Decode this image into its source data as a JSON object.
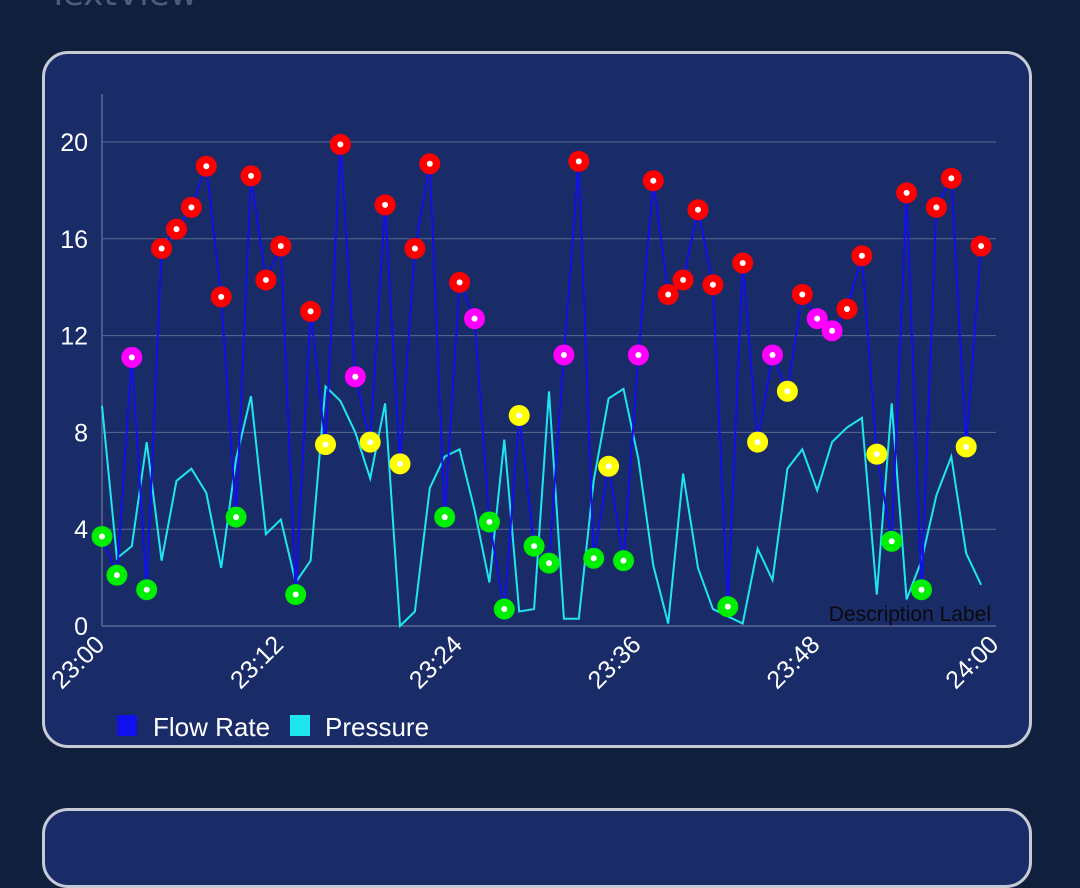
{
  "top_label": "TextView",
  "chart_data": {
    "type": "line",
    "ylim": [
      0,
      22
    ],
    "yticks": [
      0,
      4,
      8,
      12,
      16,
      20
    ],
    "xticks": [
      "23:00",
      "23:12",
      "23:24",
      "23:36",
      "23:48",
      "24:00"
    ],
    "description": "Description Label",
    "legend": [
      "Flow Rate",
      "Pressure"
    ],
    "legend_position": "bottom-left",
    "grid": true,
    "colors": {
      "flow": "#1010ee",
      "pressure": "#1ee6f0",
      "grid": "#5a6890",
      "marker_red": "#ff0000",
      "marker_magenta": "#ff00ff",
      "marker_yellow": "#ffff00",
      "marker_green": "#00ee00"
    },
    "series": [
      {
        "name": "Flow Rate",
        "values": [
          3.7,
          2.1,
          11.1,
          1.5,
          15.6,
          16.4,
          17.3,
          19.0,
          13.6,
          4.5,
          18.6,
          14.3,
          15.7,
          1.3,
          13.0,
          7.5,
          19.9,
          10.3,
          7.6,
          17.4,
          6.7,
          15.6,
          19.1,
          4.5,
          14.2,
          12.7,
          4.3,
          0.7,
          8.7,
          3.3,
          2.6,
          11.2,
          19.2,
          2.8,
          6.6,
          2.7,
          11.2,
          18.4,
          13.7,
          14.3,
          17.2,
          14.1,
          0.8,
          15.0,
          7.6,
          11.2,
          9.7,
          13.7,
          12.7,
          12.2,
          13.1,
          15.3,
          7.1,
          3.5,
          17.9,
          1.5,
          17.3,
          18.5,
          7.4,
          15.7
        ]
      },
      {
        "name": "Pressure",
        "values": [
          9.1,
          2.8,
          3.3,
          7.6,
          2.7,
          6.0,
          6.5,
          5.5,
          2.4,
          6.9,
          9.5,
          3.8,
          4.4,
          1.8,
          2.7,
          9.9,
          9.3,
          8.0,
          6.1,
          9.2,
          0.0,
          0.6,
          5.7,
          7.0,
          7.3,
          4.8,
          1.8,
          7.7,
          0.6,
          0.7,
          9.7,
          0.3,
          0.3,
          6.0,
          9.4,
          9.8,
          6.9,
          2.5,
          0.1,
          6.3,
          2.4,
          0.7,
          0.4,
          0.1,
          3.2,
          1.9,
          6.5,
          7.3,
          5.6,
          7.6,
          8.2,
          8.6,
          1.3,
          9.2,
          1.1,
          2.7,
          5.4,
          7.0,
          3.0,
          1.7
        ]
      }
    ],
    "marker_categories": [
      "g",
      "g",
      "m",
      "g",
      "r",
      "r",
      "r",
      "r",
      "r",
      "g",
      "r",
      "r",
      "r",
      "g",
      "r",
      "y",
      "r",
      "m",
      "y",
      "r",
      "y",
      "r",
      "r",
      "g",
      "r",
      "m",
      "g",
      "g",
      "y",
      "g",
      "g",
      "m",
      "r",
      "g",
      "y",
      "g",
      "m",
      "r",
      "r",
      "r",
      "r",
      "r",
      "g",
      "r",
      "y",
      "m",
      "y",
      "r",
      "m",
      "m",
      "r",
      "r",
      "y",
      "g",
      "r",
      "g",
      "r",
      "r",
      "y",
      "r"
    ]
  }
}
